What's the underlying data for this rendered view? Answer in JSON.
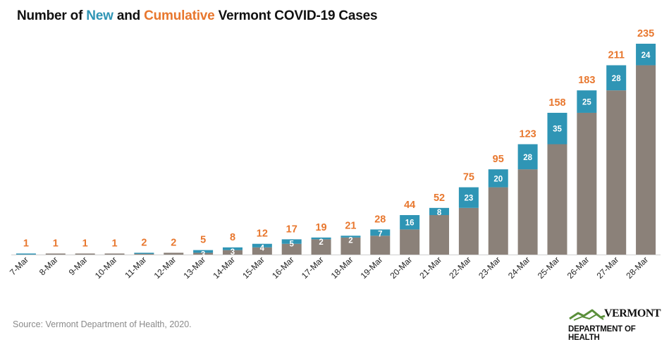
{
  "title": {
    "part1": "Number of ",
    "new_word": "New",
    "part2": " and ",
    "cumulative_word": "Cumulative",
    "part3": " Vermont COVID-19 Cases"
  },
  "colors": {
    "new": "#2f95b5",
    "cumulative_bar": "#8b8179",
    "cumulative_label": "#e8772e",
    "new_label_text": "#ffffff"
  },
  "source": "Source: Vermont Department of Health, 2020.",
  "logo": {
    "name": "VERMONT",
    "department": "DEPARTMENT OF HEALTH"
  },
  "chart_data": {
    "type": "bar",
    "stacked": true,
    "categories": [
      "7-Mar",
      "8-Mar",
      "9-Mar",
      "10-Mar",
      "11-Mar",
      "12-Mar",
      "13-Mar",
      "14-Mar",
      "15-Mar",
      "16-Mar",
      "17-Mar",
      "18-Mar",
      "19-Mar",
      "20-Mar",
      "21-Mar",
      "22-Mar",
      "23-Mar",
      "24-Mar",
      "25-Mar",
      "26-Mar",
      "27-Mar",
      "28-Mar"
    ],
    "cumulative": [
      1,
      1,
      1,
      1,
      2,
      2,
      5,
      8,
      12,
      17,
      19,
      21,
      28,
      44,
      52,
      75,
      95,
      123,
      158,
      183,
      211,
      235
    ],
    "new": [
      1,
      0,
      0,
      0,
      1,
      0,
      3,
      3,
      4,
      5,
      2,
      2,
      7,
      16,
      8,
      23,
      20,
      28,
      35,
      25,
      28,
      24
    ],
    "new_labels": [
      "",
      "",
      "",
      "",
      "",
      "",
      "3",
      "3",
      "4",
      "5",
      "2",
      "2",
      "7",
      "16",
      "8",
      "23",
      "20",
      "28",
      "35",
      "25",
      "28",
      "24"
    ],
    "ylim": [
      0,
      235
    ],
    "grid": false,
    "legend": "title"
  }
}
